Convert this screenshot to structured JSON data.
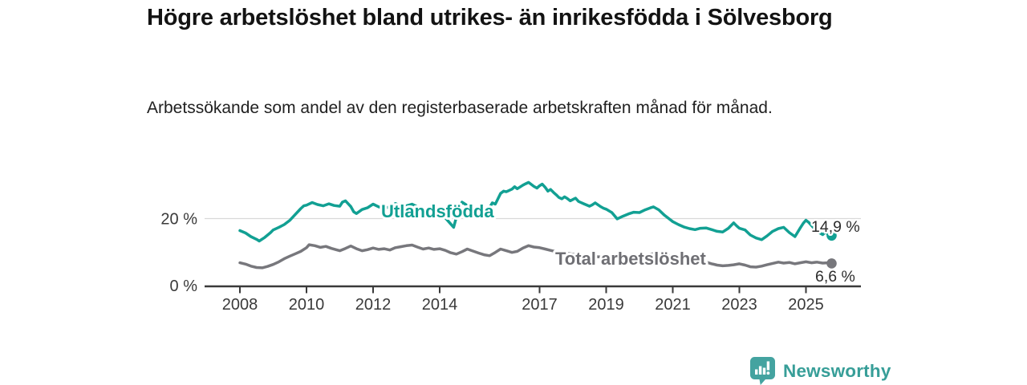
{
  "header": {
    "title": "Högre arbetslöshet bland utrikes- än inrikesfödda i Sölvesborg",
    "subtitle": "Arbetssökande som andel av den registerbaserade arbetskraften månad för månad."
  },
  "footer": {
    "brand": "Newsworthy",
    "logo_icon": "bar-chart-speech-bubble"
  },
  "colors": {
    "accent_teal": "#12a093",
    "line_gray": "#77777c",
    "axis": "#3a3a3a",
    "gridline": "#d9d9d9",
    "logo_teal": "#44a3a0"
  },
  "chart_data": {
    "type": "line",
    "title": "Högre arbetslöshet bland utrikes- än inrikesfödda i Sölvesborg",
    "subtitle": "Arbetssökande som andel av den registerbaserade arbetskraften månad för månad.",
    "unit": "%",
    "xlabel": "",
    "ylabel": "",
    "ylim": [
      0,
      32
    ],
    "grid": "horizontal-only",
    "gridlines_at": [
      20
    ],
    "y_ticks": [
      {
        "value": 0,
        "label": "0 %"
      },
      {
        "value": 20,
        "label": "20 %"
      }
    ],
    "x_ticks": [
      {
        "year": 2008,
        "label": "2008"
      },
      {
        "year": 2010,
        "label": "2010"
      },
      {
        "year": 2012,
        "label": "2012"
      },
      {
        "year": 2014,
        "label": "2014"
      },
      {
        "year": 2017,
        "label": "2017"
      },
      {
        "year": 2019,
        "label": "2019"
      },
      {
        "year": 2021,
        "label": "2021"
      },
      {
        "year": 2023,
        "label": "2023"
      },
      {
        "year": 2025,
        "label": "2025"
      }
    ],
    "legend_position": "inline-labels",
    "series": [
      {
        "name": "Utlandsfödda",
        "color": "#12a093",
        "label_color": "#12a093",
        "end_value": 14.9,
        "end_label": "14,9 %",
        "points": [
          [
            2008.0,
            16.4
          ],
          [
            2008.17,
            15.7
          ],
          [
            2008.33,
            14.6
          ],
          [
            2008.5,
            13.8
          ],
          [
            2008.58,
            13.3
          ],
          [
            2008.75,
            14.4
          ],
          [
            2008.92,
            15.8
          ],
          [
            2009.0,
            16.6
          ],
          [
            2009.17,
            17.4
          ],
          [
            2009.33,
            18.2
          ],
          [
            2009.5,
            19.5
          ],
          [
            2009.67,
            21.3
          ],
          [
            2009.83,
            23.0
          ],
          [
            2009.92,
            23.8
          ],
          [
            2010.0,
            24.0
          ],
          [
            2010.17,
            24.8
          ],
          [
            2010.33,
            24.2
          ],
          [
            2010.5,
            23.8
          ],
          [
            2010.67,
            24.4
          ],
          [
            2010.83,
            23.9
          ],
          [
            2011.0,
            23.7
          ],
          [
            2011.08,
            24.9
          ],
          [
            2011.17,
            25.3
          ],
          [
            2011.33,
            23.6
          ],
          [
            2011.42,
            22.0
          ],
          [
            2011.5,
            21.5
          ],
          [
            2011.67,
            22.7
          ],
          [
            2011.83,
            23.2
          ],
          [
            2012.0,
            24.3
          ],
          [
            2012.17,
            23.5
          ],
          [
            2012.33,
            23.1
          ],
          [
            2012.5,
            23.5
          ],
          [
            2012.67,
            24.5
          ],
          [
            2012.83,
            23.7
          ],
          [
            2013.0,
            23.8
          ],
          [
            2013.17,
            24.3
          ],
          [
            2013.33,
            23.5
          ],
          [
            2013.5,
            23.0
          ],
          [
            2013.67,
            22.5
          ],
          [
            2013.83,
            21.9
          ],
          [
            2014.0,
            21.5
          ],
          [
            2014.17,
            20.2
          ],
          [
            2014.33,
            18.4
          ],
          [
            2014.42,
            17.4
          ],
          [
            2014.5,
            20.4
          ],
          [
            2014.58,
            23.2
          ],
          [
            2014.67,
            24.9
          ],
          [
            2014.75,
            24.4
          ],
          [
            2014.92,
            23.3
          ],
          [
            2015.0,
            22.9
          ],
          [
            2015.08,
            23.3
          ],
          [
            2015.25,
            22.4
          ],
          [
            2015.42,
            22.9
          ],
          [
            2015.5,
            23.3
          ],
          [
            2015.58,
            24.7
          ],
          [
            2015.67,
            24.3
          ],
          [
            2015.75,
            25.9
          ],
          [
            2015.83,
            27.5
          ],
          [
            2015.92,
            28.2
          ],
          [
            2016.0,
            28.0
          ],
          [
            2016.17,
            28.8
          ],
          [
            2016.25,
            29.5
          ],
          [
            2016.33,
            28.9
          ],
          [
            2016.5,
            30.0
          ],
          [
            2016.58,
            30.4
          ],
          [
            2016.67,
            30.8
          ],
          [
            2016.75,
            30.2
          ],
          [
            2016.83,
            29.6
          ],
          [
            2016.92,
            29.1
          ],
          [
            2017.0,
            29.8
          ],
          [
            2017.08,
            30.3
          ],
          [
            2017.17,
            29.3
          ],
          [
            2017.25,
            28.2
          ],
          [
            2017.33,
            28.7
          ],
          [
            2017.42,
            27.8
          ],
          [
            2017.5,
            27.1
          ],
          [
            2017.58,
            26.3
          ],
          [
            2017.67,
            25.9
          ],
          [
            2017.75,
            26.5
          ],
          [
            2017.83,
            26.0
          ],
          [
            2017.92,
            25.3
          ],
          [
            2018.0,
            25.7
          ],
          [
            2018.08,
            26.1
          ],
          [
            2018.17,
            25.1
          ],
          [
            2018.33,
            24.4
          ],
          [
            2018.5,
            23.7
          ],
          [
            2018.58,
            24.1
          ],
          [
            2018.67,
            24.7
          ],
          [
            2018.83,
            23.6
          ],
          [
            2018.92,
            23.1
          ],
          [
            2019.0,
            22.8
          ],
          [
            2019.17,
            21.8
          ],
          [
            2019.33,
            19.9
          ],
          [
            2019.5,
            20.7
          ],
          [
            2019.67,
            21.4
          ],
          [
            2019.83,
            21.9
          ],
          [
            2020.0,
            21.8
          ],
          [
            2020.17,
            22.6
          ],
          [
            2020.33,
            23.2
          ],
          [
            2020.42,
            23.5
          ],
          [
            2020.58,
            22.6
          ],
          [
            2020.75,
            21.0
          ],
          [
            2020.92,
            19.7
          ],
          [
            2021.0,
            19.1
          ],
          [
            2021.17,
            18.2
          ],
          [
            2021.33,
            17.5
          ],
          [
            2021.5,
            17.0
          ],
          [
            2021.67,
            16.7
          ],
          [
            2021.83,
            17.1
          ],
          [
            2022.0,
            17.2
          ],
          [
            2022.17,
            16.7
          ],
          [
            2022.33,
            16.2
          ],
          [
            2022.5,
            16.0
          ],
          [
            2022.67,
            17.1
          ],
          [
            2022.83,
            18.7
          ],
          [
            2022.92,
            17.8
          ],
          [
            2023.0,
            17.1
          ],
          [
            2023.17,
            16.6
          ],
          [
            2023.33,
            15.1
          ],
          [
            2023.5,
            14.2
          ],
          [
            2023.67,
            13.7
          ],
          [
            2023.83,
            14.8
          ],
          [
            2024.0,
            16.2
          ],
          [
            2024.17,
            17.0
          ],
          [
            2024.33,
            17.4
          ],
          [
            2024.5,
            15.8
          ],
          [
            2024.67,
            14.6
          ],
          [
            2024.83,
            17.2
          ],
          [
            2024.92,
            18.6
          ],
          [
            2025.0,
            19.5
          ],
          [
            2025.08,
            18.9
          ],
          [
            2025.25,
            17.0
          ],
          [
            2025.42,
            15.7
          ],
          [
            2025.5,
            15.2
          ],
          [
            2025.58,
            15.9
          ],
          [
            2025.67,
            15.3
          ],
          [
            2025.77,
            14.9
          ]
        ]
      },
      {
        "name": "Total arbetslöshet",
        "color": "#77777c",
        "label_color": "#6f6f74",
        "end_value": 6.6,
        "end_label": "6,6 %",
        "points": [
          [
            2008.0,
            6.8
          ],
          [
            2008.17,
            6.4
          ],
          [
            2008.33,
            5.8
          ],
          [
            2008.5,
            5.4
          ],
          [
            2008.67,
            5.3
          ],
          [
            2008.83,
            5.7
          ],
          [
            2009.0,
            6.3
          ],
          [
            2009.17,
            7.1
          ],
          [
            2009.33,
            8.0
          ],
          [
            2009.5,
            8.8
          ],
          [
            2009.67,
            9.5
          ],
          [
            2009.83,
            10.2
          ],
          [
            2010.0,
            11.3
          ],
          [
            2010.08,
            12.2
          ],
          [
            2010.25,
            11.9
          ],
          [
            2010.42,
            11.4
          ],
          [
            2010.58,
            11.7
          ],
          [
            2010.75,
            11.1
          ],
          [
            2010.92,
            10.6
          ],
          [
            2011.0,
            10.4
          ],
          [
            2011.17,
            11.1
          ],
          [
            2011.33,
            11.8
          ],
          [
            2011.5,
            11.0
          ],
          [
            2011.67,
            10.4
          ],
          [
            2011.83,
            10.7
          ],
          [
            2012.0,
            11.2
          ],
          [
            2012.17,
            10.8
          ],
          [
            2012.33,
            11.0
          ],
          [
            2012.5,
            10.6
          ],
          [
            2012.67,
            11.3
          ],
          [
            2012.83,
            11.6
          ],
          [
            2013.0,
            11.9
          ],
          [
            2013.17,
            12.1
          ],
          [
            2013.33,
            11.5
          ],
          [
            2013.5,
            10.9
          ],
          [
            2013.67,
            11.2
          ],
          [
            2013.83,
            10.8
          ],
          [
            2014.0,
            11.0
          ],
          [
            2014.17,
            10.5
          ],
          [
            2014.33,
            9.8
          ],
          [
            2014.5,
            9.4
          ],
          [
            2014.67,
            10.1
          ],
          [
            2014.83,
            10.9
          ],
          [
            2015.0,
            10.3
          ],
          [
            2015.17,
            9.7
          ],
          [
            2015.33,
            9.2
          ],
          [
            2015.5,
            8.9
          ],
          [
            2015.67,
            9.9
          ],
          [
            2015.83,
            10.9
          ],
          [
            2016.0,
            10.4
          ],
          [
            2016.17,
            9.9
          ],
          [
            2016.33,
            10.2
          ],
          [
            2016.5,
            11.2
          ],
          [
            2016.67,
            11.9
          ],
          [
            2016.83,
            11.5
          ],
          [
            2017.0,
            11.3
          ],
          [
            2017.17,
            10.9
          ],
          [
            2017.33,
            10.5
          ],
          [
            2017.5,
            10.1
          ],
          [
            2017.67,
            9.9
          ],
          [
            2017.83,
            9.6
          ],
          [
            2018.0,
            9.4
          ],
          [
            2018.25,
            9.1
          ],
          [
            2018.5,
            8.8
          ],
          [
            2018.75,
            8.6
          ],
          [
            2019.0,
            8.4
          ],
          [
            2019.25,
            8.2
          ],
          [
            2019.5,
            8.0
          ],
          [
            2019.75,
            8.3
          ],
          [
            2020.0,
            8.6
          ],
          [
            2020.25,
            9.3
          ],
          [
            2020.5,
            9.6
          ],
          [
            2020.75,
            9.2
          ],
          [
            2021.0,
            8.8
          ],
          [
            2021.25,
            8.4
          ],
          [
            2021.5,
            8.0
          ],
          [
            2021.75,
            7.5
          ],
          [
            2022.0,
            7.0
          ],
          [
            2022.17,
            6.5
          ],
          [
            2022.33,
            6.1
          ],
          [
            2022.5,
            5.9
          ],
          [
            2022.67,
            6.0
          ],
          [
            2022.83,
            6.2
          ],
          [
            2023.0,
            6.5
          ],
          [
            2023.17,
            6.1
          ],
          [
            2023.33,
            5.6
          ],
          [
            2023.5,
            5.5
          ],
          [
            2023.67,
            5.8
          ],
          [
            2023.83,
            6.2
          ],
          [
            2024.0,
            6.6
          ],
          [
            2024.17,
            7.0
          ],
          [
            2024.33,
            6.7
          ],
          [
            2024.5,
            6.9
          ],
          [
            2024.67,
            6.5
          ],
          [
            2024.83,
            6.8
          ],
          [
            2025.0,
            7.1
          ],
          [
            2025.17,
            6.8
          ],
          [
            2025.33,
            7.0
          ],
          [
            2025.5,
            6.7
          ],
          [
            2025.67,
            6.8
          ],
          [
            2025.77,
            6.6
          ]
        ]
      }
    ]
  }
}
